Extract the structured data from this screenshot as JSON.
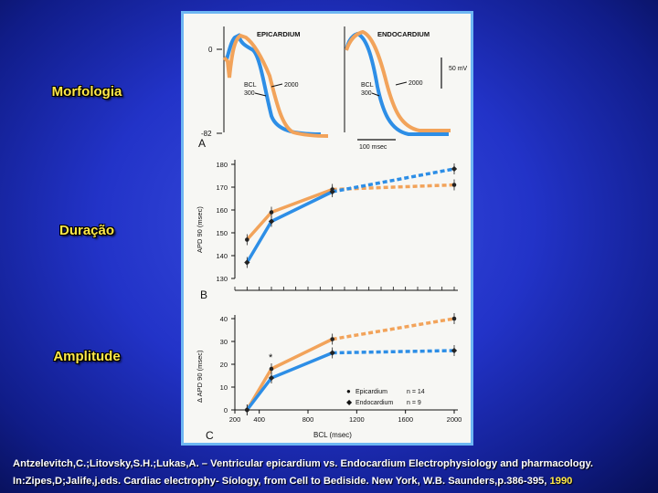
{
  "side_labels": {
    "morfologia": "Morfologia",
    "duracao": "Duração",
    "amplitude": "Amplitude"
  },
  "colors": {
    "epicardium": "#f2a35a",
    "endocardium": "#2d8ee6",
    "frame_border": "#6db6f3",
    "highlight_text": "#ffe84a"
  },
  "citation": {
    "line1": "Antzelevitch,C.;Litovsky,S.H.;Lukas,A. – Ventricular epicardium vs. Endocardium Electrophysiology and pharmacology.",
    "line2_main": "In:Zipes,D;Jalife,j.eds. Cardiac electrophy- Síology, from Cell to Bediside. New York, W.B. Saunders,p.386-395,",
    "line2_year": "1990"
  },
  "chart_data": [
    {
      "type": "line",
      "panel_letter": "A",
      "titles": [
        "EPICARDIUM",
        "ENDOCARDIUM"
      ],
      "y_ticks": [
        "0",
        "-82"
      ],
      "bcl_label": "BCL",
      "bcl_2000": "2000",
      "bcl_300": "300",
      "time_scale_label": "100 msec",
      "voltage_scale_label": "50 mV",
      "series": [
        {
          "color_key": "epicardium",
          "bcl": 2000
        },
        {
          "color_key": "endocardium",
          "bcl": 300
        }
      ]
    },
    {
      "type": "line",
      "panel_letter": "B",
      "ylabel": "APD 90 (msec)",
      "ylim": [
        130,
        180
      ],
      "y_ticks": [
        130,
        140,
        150,
        160,
        170,
        180
      ],
      "x": [
        300,
        500,
        1000,
        2000
      ],
      "series": [
        {
          "color_key": "epicardium",
          "values": [
            147,
            159,
            169,
            171
          ]
        },
        {
          "color_key": "endocardium",
          "values": [
            137,
            155,
            168,
            178
          ]
        }
      ]
    },
    {
      "type": "line",
      "panel_letter": "C",
      "ylabel": "Δ APD 90 (msec)",
      "xlabel": "BCL (msec)",
      "xlim": [
        200,
        2000
      ],
      "ylim": [
        0,
        40
      ],
      "x_ticks": [
        200,
        400,
        800,
        1200,
        1600,
        2000
      ],
      "y_ticks": [
        0,
        10,
        20,
        30,
        40
      ],
      "significance_marker": "*",
      "x": [
        300,
        500,
        1000,
        2000
      ],
      "series": [
        {
          "name": "Epicardium",
          "n_label": "n = 14",
          "color_key": "epicardium",
          "values": [
            0,
            18,
            31,
            40
          ]
        },
        {
          "name": "Endocardium",
          "n_label": "n = 9",
          "color_key": "endocardium",
          "values": [
            0,
            14,
            25,
            26
          ]
        }
      ]
    }
  ]
}
